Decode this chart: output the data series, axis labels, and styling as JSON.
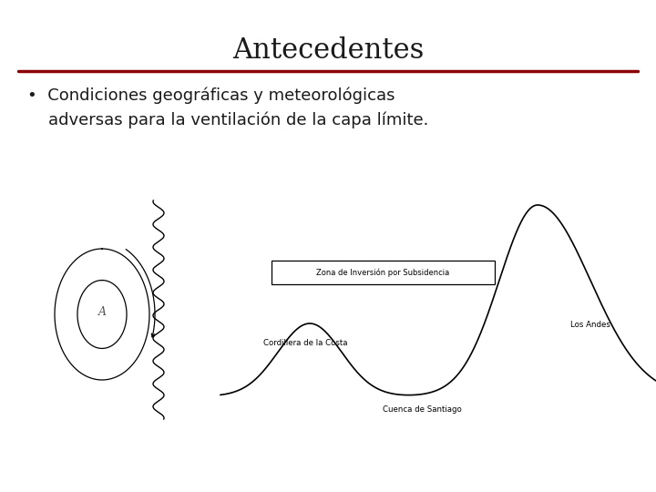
{
  "title": "Antecedentes",
  "title_fontsize": 22,
  "title_color": "#1a1a1a",
  "title_font": "serif",
  "divider_color": "#8B0000",
  "bg_color": "#ffffff",
  "bullet_text": "•  Condiciones geográficas y meteorológicas\n    adversas para la ventilación de la capa límite.",
  "bullet_fontsize": 13,
  "label_zona": "Zona de Inversión por Subsidencia",
  "label_cordillera": "Cordillera de la Costa",
  "label_andes": "Los Andes",
  "label_cuenca": "Cuenca de Santiago",
  "label_A": "A"
}
